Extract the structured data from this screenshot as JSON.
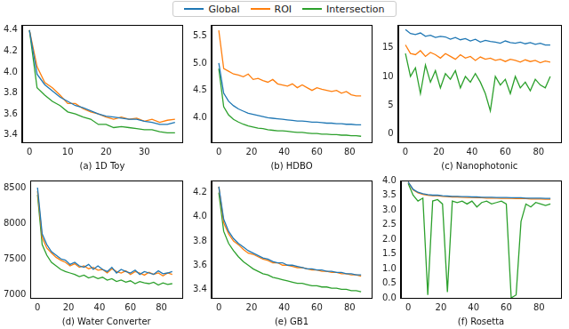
{
  "chart_data": [
    {
      "type": "line",
      "x_label": "(a) 1D Toy",
      "legend": "top",
      "grid": false,
      "x": [
        0,
        2,
        4,
        6,
        8,
        10,
        12,
        14,
        16,
        18,
        20,
        22,
        24,
        26,
        28,
        30,
        32,
        34,
        36,
        38
      ],
      "xlim": [
        -1.9,
        39.9
      ],
      "xticks": [
        0,
        10,
        20,
        30
      ],
      "ylim": [
        3.33,
        4.45
      ],
      "yticks": [
        3.4,
        3.6,
        3.8,
        {
          "value": 4,
          "label": "4.0"
        },
        4.2,
        4.4
      ],
      "series": [
        {
          "name": "Global",
          "color": "#1f77b4",
          "values": [
            4.4,
            3.98,
            3.88,
            3.82,
            3.76,
            3.72,
            3.68,
            3.66,
            3.63,
            3.6,
            3.58,
            3.57,
            3.56,
            3.55,
            3.55,
            3.53,
            3.52,
            3.5,
            3.5,
            3.52
          ]
        },
        {
          "name": "ROI",
          "color": "#ff7f0e",
          "values": [
            4.4,
            4.05,
            3.9,
            3.85,
            3.78,
            3.7,
            3.7,
            3.65,
            3.62,
            3.6,
            3.57,
            3.55,
            3.57,
            3.55,
            3.56,
            3.53,
            3.55,
            3.52,
            3.54,
            3.55
          ]
        },
        {
          "name": "Intersection",
          "color": "#2ca02c",
          "values": [
            4.4,
            3.85,
            3.78,
            3.72,
            3.68,
            3.62,
            3.6,
            3.57,
            3.55,
            3.5,
            3.5,
            3.47,
            3.48,
            3.47,
            3.46,
            3.45,
            3.45,
            3.43,
            3.42,
            3.42
          ]
        }
      ]
    },
    {
      "type": "line",
      "x_label": "(b) HDBO",
      "grid": false,
      "x": [
        0,
        3,
        6,
        9,
        12,
        15,
        18,
        21,
        24,
        27,
        30,
        33,
        36,
        39,
        42,
        45,
        48,
        51,
        54,
        57,
        60,
        63,
        66,
        69,
        72,
        75,
        78,
        81,
        84,
        87
      ],
      "xlim": [
        -4.45,
        93.45
      ],
      "xticks": [
        0,
        20,
        40,
        60,
        80
      ],
      "ylim": [
        3.55,
        5.7
      ],
      "yticks": [
        {
          "value": 4,
          "label": "4.0"
        },
        4.5,
        {
          "value": 5,
          "label": "5.0"
        },
        5.5
      ],
      "series": [
        {
          "name": "Global",
          "color": "#1f77b4",
          "values": [
            5.0,
            4.45,
            4.3,
            4.22,
            4.16,
            4.12,
            4.08,
            4.06,
            4.04,
            4.02,
            4.0,
            3.99,
            3.98,
            3.97,
            3.96,
            3.95,
            3.94,
            3.94,
            3.93,
            3.92,
            3.92,
            3.91,
            3.9,
            3.9,
            3.89,
            3.89,
            3.88,
            3.88,
            3.87,
            3.87
          ]
        },
        {
          "name": "ROI",
          "color": "#ff7f0e",
          "values": [
            5.6,
            4.9,
            4.85,
            4.8,
            4.78,
            4.75,
            4.8,
            4.7,
            4.72,
            4.68,
            4.65,
            4.7,
            4.62,
            4.6,
            4.58,
            4.62,
            4.55,
            4.6,
            4.55,
            4.5,
            4.55,
            4.52,
            4.5,
            4.48,
            4.5,
            4.45,
            4.48,
            4.42,
            4.4,
            4.4
          ]
        },
        {
          "name": "Intersection",
          "color": "#2ca02c",
          "values": [
            4.9,
            4.2,
            4.05,
            3.97,
            3.92,
            3.88,
            3.85,
            3.83,
            3.81,
            3.8,
            3.78,
            3.77,
            3.76,
            3.76,
            3.75,
            3.74,
            3.73,
            3.73,
            3.72,
            3.71,
            3.71,
            3.7,
            3.7,
            3.69,
            3.69,
            3.68,
            3.68,
            3.67,
            3.67,
            3.66
          ]
        }
      ]
    },
    {
      "type": "line",
      "x_label": "(c) Nanophotonic",
      "grid": false,
      "x": [
        0,
        3,
        6,
        9,
        12,
        15,
        18,
        21,
        24,
        27,
        30,
        33,
        36,
        39,
        42,
        45,
        48,
        51,
        54,
        57,
        60,
        63,
        66,
        69,
        72,
        75,
        78,
        81,
        84,
        87
      ],
      "xlim": [
        -4.45,
        93.45
      ],
      "xticks": [
        0,
        20,
        40,
        60,
        80
      ],
      "ylim": [
        -1.5,
        19
      ],
      "yticks": [
        0,
        5,
        10,
        15
      ],
      "series": [
        {
          "name": "Global",
          "color": "#1f77b4",
          "values": [
            18.2,
            17.5,
            17.3,
            17.6,
            17.0,
            17.2,
            16.8,
            17.0,
            16.9,
            16.5,
            16.8,
            16.4,
            16.6,
            16.2,
            16.5,
            16.0,
            16.3,
            16.1,
            16.0,
            15.8,
            16.2,
            15.9,
            15.8,
            16.0,
            15.7,
            15.9,
            15.6,
            15.8,
            15.5,
            15.5
          ]
        },
        {
          "name": "ROI",
          "color": "#ff7f0e",
          "values": [
            15.5,
            14.0,
            13.8,
            14.5,
            13.5,
            14.2,
            13.8,
            13.2,
            14.0,
            13.5,
            13.0,
            13.8,
            13.2,
            13.5,
            12.8,
            13.4,
            13.0,
            13.2,
            12.8,
            13.0,
            12.6,
            13.0,
            12.8,
            12.5,
            12.9,
            12.6,
            12.8,
            12.4,
            12.7,
            12.5
          ]
        },
        {
          "name": "Intersection",
          "color": "#2ca02c",
          "values": [
            14,
            10,
            11.5,
            7,
            12,
            9,
            11,
            8,
            10.5,
            9.5,
            11,
            8,
            10,
            9,
            10.5,
            9,
            7,
            4,
            10,
            8.5,
            9.5,
            7,
            10,
            8,
            9,
            7.5,
            9.5,
            8.5,
            8,
            10
          ]
        }
      ]
    },
    {
      "type": "line",
      "x_label": "(d) Water Converter",
      "grid": false,
      "x": [
        0,
        3,
        6,
        9,
        12,
        15,
        18,
        21,
        24,
        27,
        30,
        33,
        36,
        39,
        42,
        45,
        48,
        51,
        54,
        57,
        60,
        63,
        66,
        69,
        72,
        75,
        78,
        81,
        84,
        87
      ],
      "xlim": [
        -4.45,
        93.45
      ],
      "xticks": [
        0,
        20,
        40,
        60,
        80
      ],
      "ylim": [
        6950,
        8600
      ],
      "yticks": [
        7000,
        7500,
        8000,
        8500
      ],
      "series": [
        {
          "name": "Global",
          "color": "#1f77b4",
          "values": [
            8500,
            7850,
            7700,
            7600,
            7550,
            7500,
            7480,
            7420,
            7450,
            7400,
            7380,
            7420,
            7350,
            7400,
            7350,
            7320,
            7380,
            7300,
            7350,
            7320,
            7300,
            7340,
            7280,
            7320,
            7300,
            7280,
            7330,
            7290,
            7300,
            7320
          ]
        },
        {
          "name": "ROI",
          "color": "#ff7f0e",
          "values": [
            8450,
            7800,
            7650,
            7580,
            7520,
            7480,
            7450,
            7400,
            7430,
            7380,
            7400,
            7360,
            7380,
            7340,
            7350,
            7300,
            7360,
            7320,
            7300,
            7330,
            7280,
            7320,
            7300,
            7270,
            7310,
            7280,
            7300,
            7260,
            7300,
            7280
          ]
        },
        {
          "name": "Intersection",
          "color": "#2ca02c",
          "values": [
            8400,
            7700,
            7550,
            7450,
            7400,
            7350,
            7320,
            7300,
            7280,
            7250,
            7270,
            7230,
            7250,
            7220,
            7240,
            7200,
            7220,
            7180,
            7200,
            7170,
            7190,
            7150,
            7180,
            7160,
            7150,
            7170,
            7130,
            7160,
            7140,
            7150
          ]
        }
      ]
    },
    {
      "type": "line",
      "x_label": "(e) GB1",
      "grid": false,
      "x": [
        0,
        3,
        6,
        9,
        12,
        15,
        18,
        21,
        24,
        27,
        30,
        33,
        36,
        39,
        42,
        45,
        48,
        51,
        54,
        57,
        60,
        63,
        66,
        69,
        72,
        75,
        78,
        81,
        84,
        87
      ],
      "xlim": [
        -4.45,
        93.45
      ],
      "xticks": [
        0,
        20,
        40,
        60,
        80
      ],
      "ylim": [
        3.33,
        4.3
      ],
      "yticks": [
        3.4,
        3.6,
        3.8,
        {
          "value": 4,
          "label": "4.0"
        },
        4.2
      ],
      "series": [
        {
          "name": "Global",
          "color": "#1f77b4",
          "values": [
            4.25,
            3.98,
            3.88,
            3.82,
            3.78,
            3.75,
            3.72,
            3.7,
            3.68,
            3.66,
            3.65,
            3.63,
            3.62,
            3.62,
            3.6,
            3.6,
            3.59,
            3.58,
            3.57,
            3.57,
            3.56,
            3.56,
            3.55,
            3.55,
            3.54,
            3.54,
            3.53,
            3.53,
            3.52,
            3.52
          ]
        },
        {
          "name": "ROI",
          "color": "#ff7f0e",
          "values": [
            4.25,
            3.95,
            3.86,
            3.8,
            3.77,
            3.73,
            3.7,
            3.69,
            3.67,
            3.65,
            3.64,
            3.62,
            3.62,
            3.6,
            3.6,
            3.59,
            3.58,
            3.58,
            3.57,
            3.56,
            3.56,
            3.55,
            3.55,
            3.54,
            3.54,
            3.53,
            3.53,
            3.52,
            3.52,
            3.51
          ]
        },
        {
          "name": "Intersection",
          "color": "#2ca02c",
          "values": [
            4.2,
            3.88,
            3.78,
            3.72,
            3.67,
            3.63,
            3.6,
            3.57,
            3.55,
            3.53,
            3.52,
            3.5,
            3.49,
            3.48,
            3.47,
            3.46,
            3.45,
            3.45,
            3.44,
            3.43,
            3.43,
            3.42,
            3.42,
            3.41,
            3.41,
            3.4,
            3.4,
            3.39,
            3.39,
            3.38
          ]
        }
      ]
    },
    {
      "type": "line",
      "x_label": "(f) Rosetta",
      "grid": false,
      "x": [
        0,
        3,
        6,
        9,
        12,
        15,
        18,
        21,
        24,
        27,
        30,
        33,
        36,
        39,
        42,
        45,
        48,
        51,
        54,
        57,
        60,
        63,
        66,
        69,
        72,
        75,
        78,
        81,
        84,
        87
      ],
      "xlim": [
        -4.45,
        93.45
      ],
      "xticks": [
        0,
        20,
        40,
        60,
        80
      ],
      "ylim": [
        0,
        4
      ],
      "yticks": [
        {
          "value": 0,
          "label": "0.0"
        },
        0.5,
        {
          "value": 1,
          "label": "1.0"
        },
        1.5,
        {
          "value": 2,
          "label": "2.0"
        },
        2.5,
        {
          "value": 3,
          "label": "3.0"
        },
        3.5,
        {
          "value": 4,
          "label": "4.0"
        }
      ],
      "series": [
        {
          "name": "Global",
          "color": "#1f77b4",
          "values": [
            3.95,
            3.7,
            3.6,
            3.55,
            3.52,
            3.5,
            3.5,
            3.48,
            3.47,
            3.46,
            3.46,
            3.45,
            3.45,
            3.44,
            3.44,
            3.43,
            3.43,
            3.43,
            3.42,
            3.42,
            3.42,
            3.41,
            3.41,
            3.41,
            3.4,
            3.4,
            3.4,
            3.4,
            3.39,
            3.39
          ]
        },
        {
          "name": "ROI",
          "color": "#ff7f0e",
          "values": [
            3.95,
            3.68,
            3.58,
            3.53,
            3.5,
            3.48,
            3.48,
            3.46,
            3.45,
            3.44,
            3.44,
            3.43,
            3.42,
            3.42,
            3.41,
            3.41,
            3.4,
            3.4,
            3.4,
            3.39,
            3.39,
            3.39,
            3.38,
            3.38,
            3.38,
            3.37,
            3.37,
            3.37,
            3.36,
            3.36
          ]
        },
        {
          "name": "Intersection",
          "color": "#2ca02c",
          "values": [
            3.9,
            3.5,
            3.3,
            3.4,
            0.1,
            3.3,
            3.35,
            3.2,
            0.2,
            3.3,
            3.25,
            3.3,
            3.2,
            3.3,
            3.1,
            3.25,
            3.3,
            3.2,
            3.25,
            3.3,
            3.2,
            0,
            0.1,
            2.6,
            3.2,
            3.1,
            3.25,
            3.2,
            3.15,
            3.2
          ]
        }
      ]
    }
  ]
}
